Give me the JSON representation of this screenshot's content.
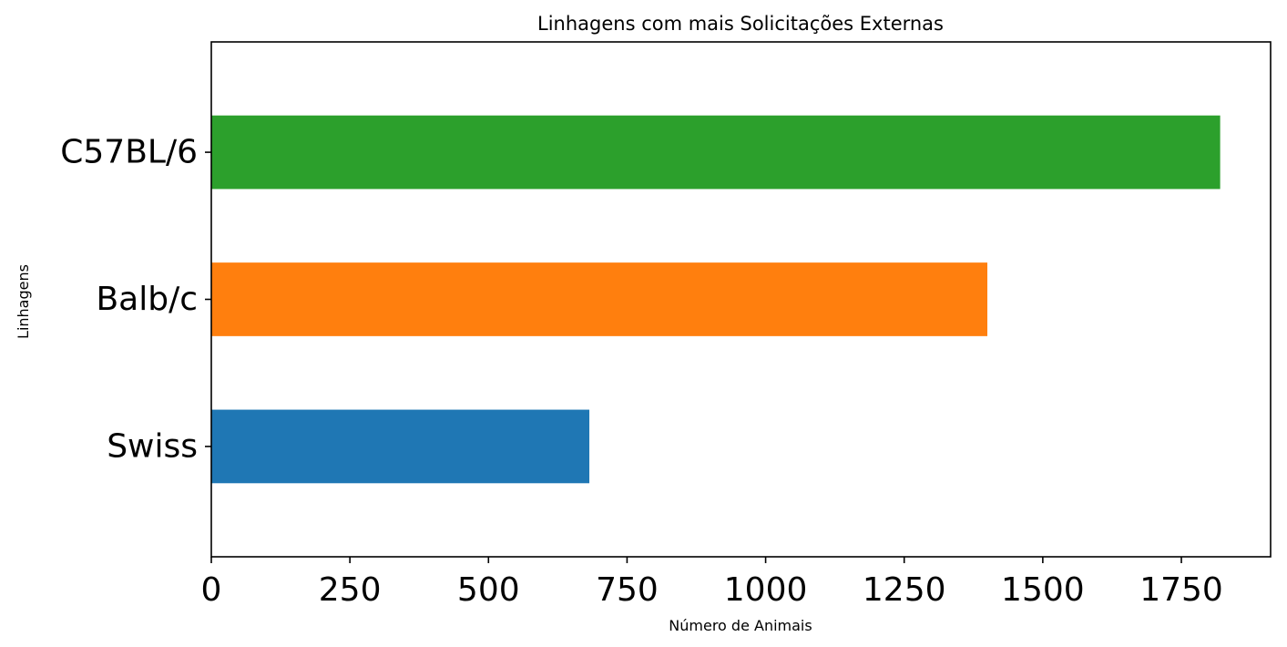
{
  "chart_data": {
    "type": "bar",
    "orientation": "horizontal",
    "title": "Linhagens com mais Solicitações Externas",
    "xlabel": "Número de Animais",
    "ylabel": "Linhagens",
    "categories": [
      "Swiss",
      "Balb/c",
      "C57BL/6"
    ],
    "values": [
      682,
      1400,
      1820
    ],
    "colors": [
      "#1f77b4",
      "#ff7f0e",
      "#2ca02c"
    ],
    "xlim": [
      0,
      1911
    ],
    "xticks": [
      0,
      250,
      500,
      750,
      1000,
      1250,
      1500,
      1750
    ],
    "grid": false,
    "legend": "none"
  }
}
